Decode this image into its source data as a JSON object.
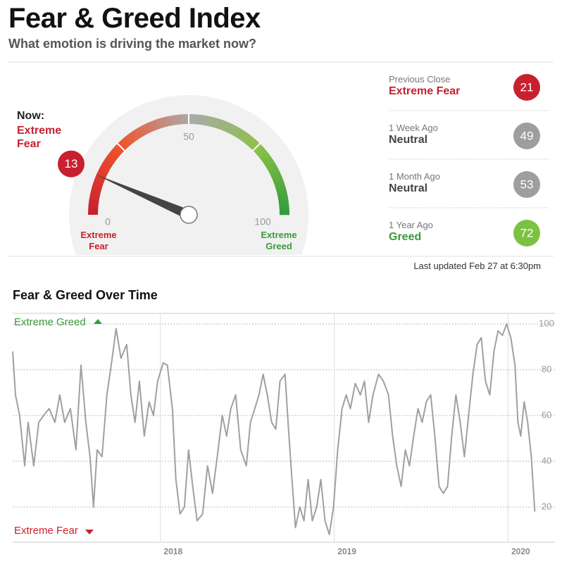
{
  "header": {
    "title": "Fear & Greed Index",
    "subtitle": "What emotion is driving the market now?"
  },
  "gauge": {
    "now_label": "Now:",
    "now_rating": "Extreme Fear",
    "value": 13,
    "min": 0,
    "max": 100,
    "ticks": [
      0,
      50,
      100
    ],
    "min_label": "Extreme Fear",
    "max_label": "Extreme Greed",
    "color": "#c8202f"
  },
  "history": [
    {
      "label": "Previous Close",
      "rating": "Extreme Fear",
      "value": 21,
      "color": "#c8202f"
    },
    {
      "label": "1 Week Ago",
      "rating": "Neutral",
      "value": 49,
      "color": "#9e9e9e"
    },
    {
      "label": "1 Month Ago",
      "rating": "Neutral",
      "value": 53,
      "color": "#9e9e9e"
    },
    {
      "label": "1 Year Ago",
      "rating": "Greed",
      "value": 72,
      "color": "#7cc242"
    }
  ],
  "last_updated": "Last updated Feb 27 at 6:30pm",
  "chart_data": {
    "type": "line",
    "title": "Fear & Greed Over Time",
    "annotations": {
      "top": "Extreme Greed",
      "bottom": "Extreme Fear"
    },
    "color": "#a0a0a0",
    "x": [
      2017.15,
      2017.166,
      2017.19,
      2017.219,
      2017.239,
      2017.271,
      2017.3,
      2017.328,
      2017.36,
      2017.393,
      2017.421,
      2017.449,
      2017.482,
      2017.514,
      2017.543,
      2017.571,
      2017.595,
      2017.615,
      2017.636,
      2017.664,
      2017.692,
      2017.717,
      2017.745,
      2017.773,
      2017.806,
      2017.83,
      2017.854,
      2017.879,
      2017.907,
      2017.935,
      2017.96,
      2017.984,
      2018.016,
      2018.04,
      2018.069,
      2018.089,
      2018.113,
      2018.138,
      2018.162,
      2018.186,
      2018.211,
      2018.243,
      2018.271,
      2018.3,
      2018.332,
      2018.356,
      2018.381,
      2018.405,
      2018.433,
      2018.462,
      2018.494,
      2018.518,
      2018.543,
      2018.567,
      2018.591,
      2018.615,
      2018.64,
      2018.664,
      2018.688,
      2018.717,
      2018.737,
      2018.757,
      2018.777,
      2018.802,
      2018.826,
      2018.85,
      2018.874,
      2018.899,
      2018.923,
      2018.947,
      2018.972,
      2018.996,
      2019.02,
      2019.045,
      2019.069,
      2019.093,
      2019.121,
      2019.15,
      2019.174,
      2019.198,
      2019.223,
      2019.255,
      2019.283,
      2019.312,
      2019.336,
      2019.36,
      2019.385,
      2019.409,
      2019.433,
      2019.457,
      2019.482,
      2019.506,
      2019.53,
      2019.555,
      2019.579,
      2019.603,
      2019.628,
      2019.652,
      2019.676,
      2019.7,
      2019.725,
      2019.749,
      2019.773,
      2019.798,
      2019.822,
      2019.846,
      2019.87,
      2019.895,
      2019.919,
      2019.943,
      2019.968,
      2019.992,
      2020.016,
      2020.04,
      2020.057,
      2020.073,
      2020.093,
      2020.113,
      2020.134,
      2020.154
    ],
    "values": [
      88,
      69,
      60,
      38,
      57,
      38,
      57,
      60,
      63,
      57,
      69,
      57,
      63,
      45,
      82,
      57,
      42,
      20,
      45,
      42,
      69,
      82,
      98,
      85,
      91,
      69,
      57,
      75,
      51,
      66,
      60,
      75,
      83,
      82,
      63,
      32,
      17,
      20,
      45,
      29,
      14,
      17,
      38,
      26,
      45,
      60,
      51,
      63,
      69,
      45,
      38,
      57,
      63,
      69,
      78,
      69,
      57,
      54,
      75,
      78,
      54,
      32,
      11,
      20,
      14,
      32,
      14,
      20,
      32,
      14,
      8,
      20,
      45,
      63,
      69,
      63,
      74,
      69,
      75,
      57,
      69,
      78,
      75,
      69,
      51,
      38,
      29,
      45,
      38,
      51,
      63,
      57,
      66,
      69,
      51,
      29,
      26,
      29,
      51,
      69,
      57,
      42,
      60,
      78,
      91,
      94,
      75,
      69,
      88,
      97,
      95,
      100,
      94,
      82,
      57,
      51,
      66,
      57,
      42,
      18
    ],
    "xlim": [
      2017.15,
      2020.27
    ],
    "ylim": [
      4.6,
      104.6
    ],
    "xticks": [
      2018,
      2019,
      2020
    ],
    "yticks": [
      20,
      40,
      60,
      80,
      100
    ],
    "grid": true
  }
}
